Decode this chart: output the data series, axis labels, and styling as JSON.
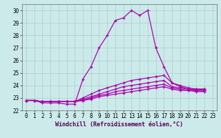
{
  "background_color": "#cceaea",
  "grid_color": "#aacccc",
  "line_color": "#aa00aa",
  "xlabel": "Windchill (Refroidissement éolien,°C)",
  "yticks": [
    22,
    23,
    24,
    25,
    26,
    27,
    28,
    29,
    30
  ],
  "xticks": [
    0,
    1,
    2,
    3,
    4,
    5,
    6,
    7,
    8,
    9,
    10,
    11,
    12,
    13,
    14,
    15,
    16,
    17,
    18,
    19,
    20,
    21,
    22,
    23
  ],
  "xlim": [
    -0.5,
    23.5
  ],
  "ylim": [
    22.0,
    30.5
  ],
  "curves": [
    {
      "x": [
        0,
        1,
        2,
        3,
        4,
        5,
        6,
        7,
        8,
        9,
        10,
        11,
        12,
        13,
        14,
        15,
        16,
        17,
        18,
        19,
        20,
        21,
        22
      ],
      "y": [
        22.8,
        22.8,
        22.6,
        22.6,
        22.6,
        22.5,
        22.5,
        24.5,
        25.5,
        27.0,
        28.0,
        29.2,
        29.4,
        30.0,
        29.6,
        30.0,
        27.0,
        25.5,
        24.2,
        23.9,
        23.7,
        23.7,
        23.7
      ]
    },
    {
      "x": [
        0,
        1,
        2,
        3,
        4,
        5,
        6,
        7,
        8,
        9,
        10,
        11,
        12,
        13,
        14,
        15,
        16,
        17,
        18,
        19,
        20,
        21,
        22
      ],
      "y": [
        22.8,
        22.8,
        22.7,
        22.7,
        22.7,
        22.7,
        22.7,
        23.0,
        23.3,
        23.6,
        23.8,
        24.0,
        24.2,
        24.4,
        24.5,
        24.6,
        24.7,
        24.8,
        24.2,
        24.0,
        23.8,
        23.7,
        23.7
      ]
    },
    {
      "x": [
        0,
        1,
        2,
        3,
        4,
        5,
        6,
        7,
        8,
        9,
        10,
        11,
        12,
        13,
        14,
        15,
        16,
        17,
        18,
        19,
        20,
        21,
        22
      ],
      "y": [
        22.8,
        22.8,
        22.7,
        22.7,
        22.7,
        22.7,
        22.7,
        22.9,
        23.1,
        23.3,
        23.5,
        23.7,
        23.9,
        24.0,
        24.1,
        24.2,
        24.3,
        24.4,
        23.9,
        23.8,
        23.7,
        23.6,
        23.6
      ]
    },
    {
      "x": [
        0,
        1,
        2,
        3,
        4,
        5,
        6,
        7,
        8,
        9,
        10,
        11,
        12,
        13,
        14,
        15,
        16,
        17,
        18,
        19,
        20,
        21,
        22
      ],
      "y": [
        22.8,
        22.8,
        22.7,
        22.7,
        22.7,
        22.7,
        22.7,
        22.8,
        23.0,
        23.2,
        23.3,
        23.5,
        23.6,
        23.7,
        23.8,
        23.9,
        24.0,
        24.1,
        23.8,
        23.7,
        23.6,
        23.6,
        23.6
      ]
    },
    {
      "x": [
        0,
        1,
        2,
        3,
        4,
        5,
        6,
        7,
        8,
        9,
        10,
        11,
        12,
        13,
        14,
        15,
        16,
        17,
        18,
        19,
        20,
        21,
        22
      ],
      "y": [
        22.8,
        22.8,
        22.7,
        22.7,
        22.7,
        22.7,
        22.7,
        22.8,
        22.9,
        23.1,
        23.2,
        23.3,
        23.4,
        23.5,
        23.6,
        23.7,
        23.8,
        23.9,
        23.7,
        23.6,
        23.6,
        23.5,
        23.5
      ]
    }
  ],
  "marker": "+",
  "marker_size": 3.5,
  "marker_edge_width": 0.9,
  "line_width": 0.9,
  "tick_fontsize": 5.5,
  "xlabel_fontsize": 6.0,
  "ytick_fontsize": 5.5
}
